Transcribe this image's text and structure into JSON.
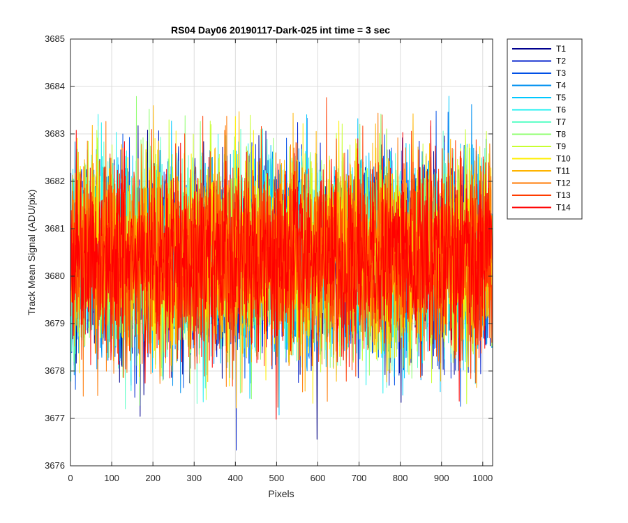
{
  "chart_data": {
    "type": "line",
    "title": "RS04 Day06 20190117-Dark-025 int time = 3 sec",
    "xlabel": "Pixels",
    "ylabel": "Track Mean Signal (ADU/pix)",
    "xlim": [
      0,
      1024
    ],
    "ylim": [
      3676,
      3685
    ],
    "xticks": [
      0,
      100,
      200,
      300,
      400,
      500,
      600,
      700,
      800,
      900,
      1000
    ],
    "yticks": [
      3676,
      3677,
      3678,
      3679,
      3680,
      3681,
      3682,
      3683,
      3684,
      3685
    ],
    "grid": true,
    "legend_position": "outside-top-right",
    "n_points": 1024,
    "noise_mean": 3680.4,
    "noise_std": 1.0,
    "series": [
      {
        "name": "T1",
        "color": "#00008f"
      },
      {
        "name": "T2",
        "color": "#001fcc"
      },
      {
        "name": "T3",
        "color": "#0050e6"
      },
      {
        "name": "T4",
        "color": "#0090f0"
      },
      {
        "name": "T5",
        "color": "#00c8ff"
      },
      {
        "name": "T6",
        "color": "#20f0f0"
      },
      {
        "name": "T7",
        "color": "#60ffc8"
      },
      {
        "name": "T8",
        "color": "#90ff70"
      },
      {
        "name": "T9",
        "color": "#c8ff30"
      },
      {
        "name": "T10",
        "color": "#ffee00"
      },
      {
        "name": "T11",
        "color": "#ffb400"
      },
      {
        "name": "T12",
        "color": "#ff7800"
      },
      {
        "name": "T13",
        "color": "#ff3c00"
      },
      {
        "name": "T14",
        "color": "#ff0000"
      }
    ]
  }
}
